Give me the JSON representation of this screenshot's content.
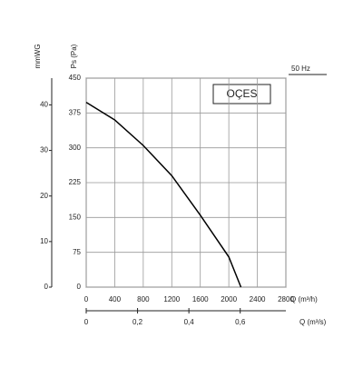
{
  "chart_data": {
    "type": "line",
    "ylabel": "Ps (Pa)",
    "y2label": "mmWG",
    "xlabel": "Q (m³/h)",
    "x2label": "Q (m³/s)",
    "note": "50 Hz",
    "brand": "OÇES",
    "x": [
      0,
      400,
      800,
      1200,
      1600,
      2000,
      2170
    ],
    "values": [
      398,
      360,
      305,
      240,
      155,
      65,
      0
    ],
    "color": "#000000",
    "xlim": [
      0,
      2800
    ],
    "xticks": [
      0,
      400,
      800,
      1200,
      1600,
      2000,
      2400,
      2800
    ],
    "ylim": [
      0,
      450
    ],
    "yticks": [
      0,
      75,
      150,
      225,
      300,
      375,
      450
    ],
    "y2lim": [
      0,
      45.87
    ],
    "y2ticks": [
      0,
      10,
      20,
      30,
      40
    ],
    "x2lim": [
      0,
      0.7778
    ],
    "x2ticks": [
      0,
      {
        "value": 0.2,
        "label": "0,2"
      },
      {
        "value": 0.4,
        "label": "0,4"
      },
      {
        "value": 0.6,
        "label": "0,6"
      }
    ],
    "grid": true
  }
}
